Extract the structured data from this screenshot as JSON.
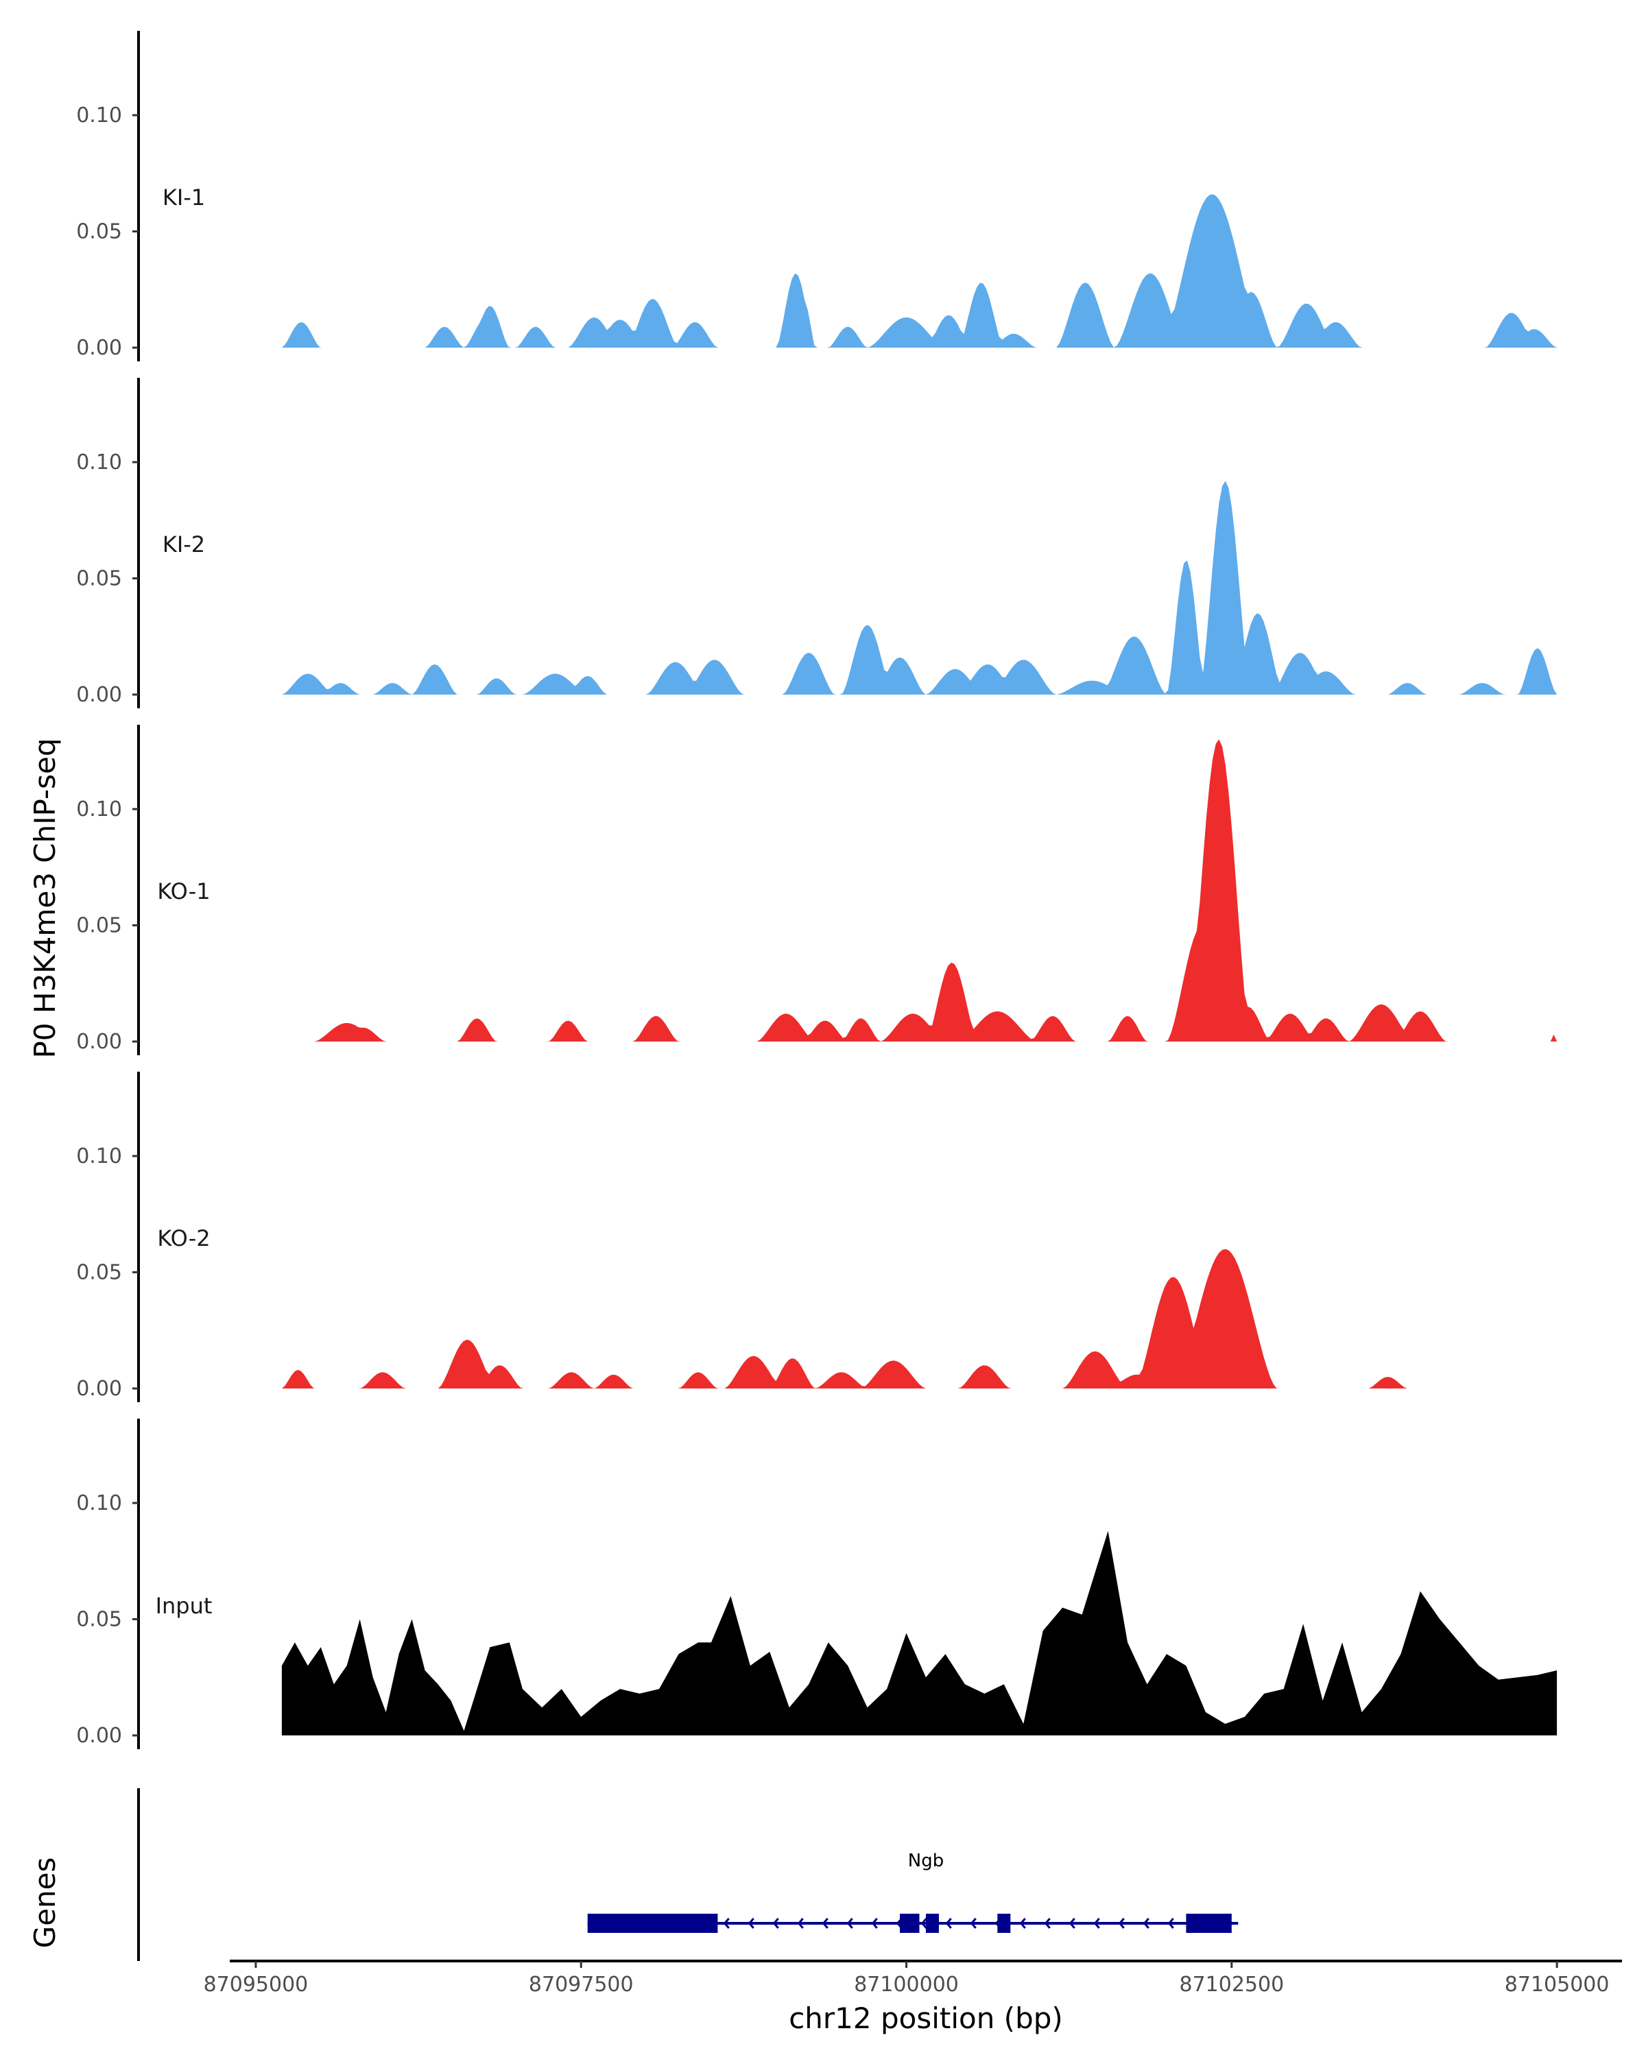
{
  "chart_data": {
    "type": "area",
    "ylabel": "P0 H3K4me3 ChIP-seq",
    "xlabel": "chr12 position (bp)",
    "xlim": [
      87094800,
      87105500
    ],
    "ylim": [
      0,
      0.135
    ],
    "data_range": [
      87095200,
      87105000
    ],
    "x_ticks": [
      87095000,
      87097500,
      87100000,
      87102500,
      87105000
    ],
    "x_tick_labels": [
      "87095000",
      "87097500",
      "87100000",
      "87102500",
      "87105000"
    ],
    "y_ticks": [
      0.0,
      0.05,
      0.1
    ],
    "y_tick_labels": [
      "0.00",
      "0.05",
      "0.10"
    ],
    "colors": {
      "KI": "#5EACEC",
      "KO": "#EE2C2C",
      "Input": "#000000",
      "gene": "#00008B"
    },
    "tracks": [
      {
        "name": "KI-1",
        "color": "#5EACEC",
        "peaks": [
          [
            87095200,
            87095500,
            0.011
          ],
          [
            87096300,
            87096600,
            0.009
          ],
          [
            87096600,
            87096950,
            0.013
          ],
          [
            87096650,
            87096950,
            0.018
          ],
          [
            87097000,
            87097300,
            0.009
          ],
          [
            87097400,
            87097800,
            0.013
          ],
          [
            87097600,
            87098000,
            0.012
          ],
          [
            87097850,
            87098250,
            0.021
          ],
          [
            87098200,
            87098550,
            0.011
          ],
          [
            87099000,
            87099300,
            0.032
          ],
          [
            87099150,
            87099300,
            0.018
          ],
          [
            87099400,
            87099700,
            0.009
          ],
          [
            87099700,
            87100300,
            0.013
          ],
          [
            87100150,
            87100500,
            0.014
          ],
          [
            87100400,
            87100750,
            0.028
          ],
          [
            87100650,
            87101000,
            0.006
          ],
          [
            87101150,
            87101600,
            0.028
          ],
          [
            87101600,
            87102150,
            0.032
          ],
          [
            87101950,
            87102750,
            0.066
          ],
          [
            87102450,
            87102850,
            0.024
          ],
          [
            87102850,
            87103300,
            0.019
          ],
          [
            87103100,
            87103500,
            0.011
          ],
          [
            87104450,
            87104850,
            0.015
          ],
          [
            87104650,
            87105000,
            0.008
          ]
        ]
      },
      {
        "name": "KI-2",
        "color": "#5EACEC",
        "peaks": [
          [
            87095200,
            87095600,
            0.009
          ],
          [
            87095500,
            87095800,
            0.005
          ],
          [
            87095900,
            87096200,
            0.005
          ],
          [
            87096200,
            87096550,
            0.013
          ],
          [
            87096700,
            87097000,
            0.007
          ],
          [
            87097050,
            87097550,
            0.009
          ],
          [
            87097400,
            87097700,
            0.008
          ],
          [
            87098000,
            87098450,
            0.014
          ],
          [
            87098300,
            87098750,
            0.015
          ],
          [
            87099050,
            87099450,
            0.018
          ],
          [
            87099500,
            87099900,
            0.03
          ],
          [
            87099750,
            87100150,
            0.016
          ],
          [
            87100150,
            87100600,
            0.011
          ],
          [
            87100400,
            87100850,
            0.013
          ],
          [
            87100650,
            87101150,
            0.015
          ],
          [
            87101150,
            87101700,
            0.006
          ],
          [
            87101500,
            87102000,
            0.025
          ],
          [
            87102000,
            87102300,
            0.058
          ],
          [
            87102250,
            87102650,
            0.092
          ],
          [
            87102500,
            87102900,
            0.035
          ],
          [
            87102800,
            87103250,
            0.018
          ],
          [
            87103000,
            87103450,
            0.01
          ],
          [
            87103700,
            87104000,
            0.005
          ],
          [
            87104250,
            87104600,
            0.005
          ],
          [
            87104700,
            87105000,
            0.02
          ]
        ]
      },
      {
        "name": "KO-1",
        "color": "#EE2C2C",
        "peaks": [
          [
            87095450,
            87095950,
            0.008
          ],
          [
            87095650,
            87096000,
            0.006
          ],
          [
            87096550,
            87096850,
            0.01
          ],
          [
            87097250,
            87097550,
            0.009
          ],
          [
            87097900,
            87098250,
            0.011
          ],
          [
            87098850,
            87099300,
            0.012
          ],
          [
            87099200,
            87099550,
            0.009
          ],
          [
            87099500,
            87099800,
            0.01
          ],
          [
            87099800,
            87100300,
            0.012
          ],
          [
            87100150,
            87100550,
            0.034
          ],
          [
            87100400,
            87101000,
            0.013
          ],
          [
            87100950,
            87101300,
            0.011
          ],
          [
            87101550,
            87101850,
            0.011
          ],
          [
            87102000,
            87102550,
            0.05
          ],
          [
            87102150,
            87102650,
            0.13
          ],
          [
            87102450,
            87102800,
            0.015
          ],
          [
            87102750,
            87103150,
            0.012
          ],
          [
            87103050,
            87103400,
            0.01
          ],
          [
            87103400,
            87103900,
            0.016
          ],
          [
            87103750,
            87104150,
            0.013
          ],
          [
            87104950,
            87105000,
            0.003
          ]
        ]
      },
      {
        "name": "KO-2",
        "color": "#EE2C2C",
        "peaks": [
          [
            87095200,
            87095450,
            0.008
          ],
          [
            87095800,
            87096150,
            0.007
          ],
          [
            87096400,
            87096850,
            0.021
          ],
          [
            87096700,
            87097050,
            0.01
          ],
          [
            87097250,
            87097600,
            0.007
          ],
          [
            87097600,
            87097900,
            0.006
          ],
          [
            87098250,
            87098550,
            0.007
          ],
          [
            87098600,
            87099050,
            0.014
          ],
          [
            87098950,
            87099300,
            0.013
          ],
          [
            87099300,
            87099700,
            0.007
          ],
          [
            87099650,
            87100150,
            0.012
          ],
          [
            87100400,
            87100800,
            0.01
          ],
          [
            87101200,
            87101700,
            0.016
          ],
          [
            87101550,
            87102000,
            0.006
          ],
          [
            87101750,
            87102350,
            0.048
          ],
          [
            87102050,
            87102850,
            0.06
          ],
          [
            87103550,
            87103850,
            0.005
          ]
        ]
      },
      {
        "name": "Input",
        "color": "#000000",
        "signal": [
          [
            87095200,
            0.03
          ],
          [
            87095300,
            0.04
          ],
          [
            87095400,
            0.03
          ],
          [
            87095500,
            0.038
          ],
          [
            87095600,
            0.022
          ],
          [
            87095700,
            0.03
          ],
          [
            87095800,
            0.05
          ],
          [
            87095900,
            0.025
          ],
          [
            87096000,
            0.01
          ],
          [
            87096100,
            0.035
          ],
          [
            87096200,
            0.05
          ],
          [
            87096300,
            0.028
          ],
          [
            87096400,
            0.022
          ],
          [
            87096500,
            0.015
          ],
          [
            87096600,
            0.002
          ],
          [
            87096700,
            0.02
          ],
          [
            87096800,
            0.038
          ],
          [
            87096950,
            0.04
          ],
          [
            87097050,
            0.02
          ],
          [
            87097200,
            0.012
          ],
          [
            87097350,
            0.02
          ],
          [
            87097500,
            0.008
          ],
          [
            87097650,
            0.015
          ],
          [
            87097800,
            0.02
          ],
          [
            87097950,
            0.018
          ],
          [
            87098100,
            0.02
          ],
          [
            87098250,
            0.035
          ],
          [
            87098400,
            0.04
          ],
          [
            87098500,
            0.04
          ],
          [
            87098650,
            0.06
          ],
          [
            87098800,
            0.03
          ],
          [
            87098950,
            0.036
          ],
          [
            87099100,
            0.012
          ],
          [
            87099250,
            0.022
          ],
          [
            87099400,
            0.04
          ],
          [
            87099550,
            0.03
          ],
          [
            87099700,
            0.012
          ],
          [
            87099850,
            0.02
          ],
          [
            87100000,
            0.044
          ],
          [
            87100150,
            0.025
          ],
          [
            87100300,
            0.035
          ],
          [
            87100450,
            0.022
          ],
          [
            87100600,
            0.018
          ],
          [
            87100750,
            0.022
          ],
          [
            87100900,
            0.005
          ],
          [
            87101050,
            0.045
          ],
          [
            87101200,
            0.055
          ],
          [
            87101350,
            0.052
          ],
          [
            87101450,
            0.07
          ],
          [
            87101550,
            0.088
          ],
          [
            87101700,
            0.04
          ],
          [
            87101850,
            0.022
          ],
          [
            87102000,
            0.035
          ],
          [
            87102150,
            0.03
          ],
          [
            87102300,
            0.01
          ],
          [
            87102450,
            0.005
          ],
          [
            87102600,
            0.008
          ],
          [
            87102750,
            0.018
          ],
          [
            87102900,
            0.02
          ],
          [
            87103050,
            0.048
          ],
          [
            87103200,
            0.015
          ],
          [
            87103350,
            0.04
          ],
          [
            87103500,
            0.01
          ],
          [
            87103650,
            0.02
          ],
          [
            87103800,
            0.035
          ],
          [
            87103950,
            0.062
          ],
          [
            87104100,
            0.05
          ],
          [
            87104250,
            0.04
          ],
          [
            87104400,
            0.03
          ],
          [
            87104550,
            0.024
          ],
          [
            87104700,
            0.025
          ],
          [
            87104850,
            0.026
          ],
          [
            87105000,
            0.028
          ]
        ]
      }
    ],
    "genes_track": {
      "label": "Genes",
      "gene_name": "Ngb",
      "start": 87097550,
      "end": 87102550,
      "strand": "-",
      "exons": [
        [
          87097550,
          87098550
        ],
        [
          87099950,
          87100100
        ],
        [
          87100150,
          87100250
        ],
        [
          87100700,
          87100800
        ],
        [
          87102150,
          87102500
        ]
      ]
    }
  }
}
